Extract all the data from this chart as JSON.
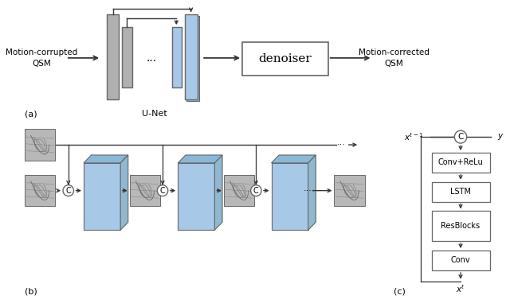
{
  "bg_color": "#ffffff",
  "fig_label_a": "(a)",
  "fig_label_b": "(b)",
  "fig_label_c": "(c)",
  "unet_label": "U-Net",
  "denoiser_label": "denoiser",
  "text_input": "Motion-corrupted\nQSM",
  "text_output": "Motion-corrected\nQSM",
  "block_labels_c": [
    "Conv+ReLu",
    "LSTM",
    "ResBlocks",
    "Conv"
  ],
  "gray_color": "#b0b0b0",
  "gray_light": "#c8c8c8",
  "blue_color": "#a8c8e8",
  "blue_top": "#8ab8d8",
  "blue_right": "#90b8d0",
  "box_edge": "#666666",
  "arrow_color": "#333333",
  "text_color": "#000000",
  "img_bg": "#b8b8b8",
  "img_line": "#686868"
}
